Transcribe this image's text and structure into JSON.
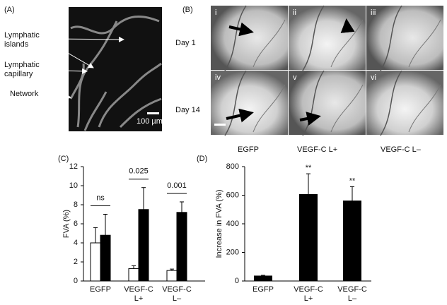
{
  "panels": {
    "a": {
      "label": "(A)",
      "islands": "Lymphatic\nislands",
      "capillary": "Lymphatic\ncapillary",
      "network": "Network",
      "day1": "Day 1",
      "day14": "Day 14",
      "scale": "100 µm"
    },
    "b": {
      "label": "(B)",
      "images": [
        "i",
        "ii",
        "iii",
        "iv",
        "v",
        "vi"
      ],
      "columns": [
        "EGFP",
        "VEGF-C L+",
        "VEGF-C L–"
      ]
    }
  },
  "chart_data": [
    {
      "type": "bar",
      "label": "(C)",
      "y_label": "FVA (%)",
      "categories": [
        "EGFP",
        "VEGF-C\nL+",
        "VEGF-C\nL–"
      ],
      "series": [
        {
          "color": "#ffffff",
          "values": [
            4.0,
            1.3,
            1.1
          ],
          "errors": [
            1.6,
            0.3,
            0.15
          ]
        },
        {
          "color": "#000000",
          "values": [
            4.8,
            7.5,
            7.2
          ],
          "errors": [
            2.2,
            2.3,
            1.1
          ]
        }
      ],
      "significance": [
        "ns",
        "0.025",
        "0.001"
      ],
      "ylim": [
        0,
        12
      ],
      "yticks": [
        0,
        2,
        4,
        6,
        8,
        10,
        12
      ]
    },
    {
      "type": "bar",
      "label": "(D)",
      "y_label": "Increase in FVA (%)",
      "categories": [
        "EGFP",
        "VEGF-C\nL+",
        "VEGF-C\nL–"
      ],
      "series": [
        {
          "color": "#000000",
          "values": [
            35,
            605,
            560
          ],
          "errors": [
            5,
            145,
            100
          ]
        }
      ],
      "significance": [
        null,
        "**",
        "**"
      ],
      "ylim": [
        0,
        800
      ],
      "yticks": [
        0,
        200,
        400,
        600,
        800
      ]
    }
  ]
}
